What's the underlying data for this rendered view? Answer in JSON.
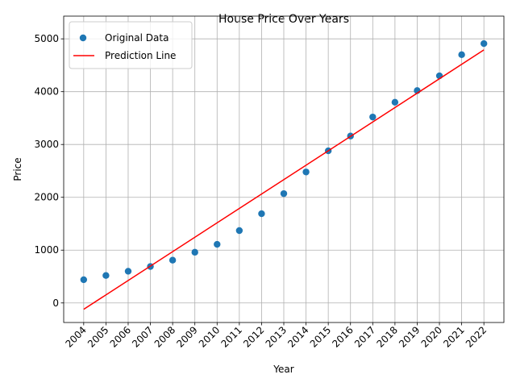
{
  "chart_data": {
    "type": "scatter",
    "title": "House Price Over Years",
    "xlabel": "Year",
    "ylabel": "Price",
    "xlim": [
      2003.1,
      2022.9
    ],
    "ylim": [
      -370,
      5430
    ],
    "xticks": [
      2004,
      2005,
      2006,
      2007,
      2008,
      2009,
      2010,
      2011,
      2012,
      2013,
      2014,
      2015,
      2016,
      2017,
      2018,
      2019,
      2020,
      2021,
      2022
    ],
    "yticks": [
      0,
      1000,
      2000,
      3000,
      4000,
      5000
    ],
    "grid": true,
    "legend": "upper left",
    "series": [
      {
        "name": "Original Data",
        "type": "scatter",
        "color": "#1f77b4",
        "x": [
          2004,
          2005,
          2006,
          2007,
          2008,
          2009,
          2010,
          2011,
          2012,
          2013,
          2014,
          2015,
          2016,
          2017,
          2018,
          2019,
          2020,
          2021,
          2022
        ],
        "values": [
          440,
          520,
          600,
          690,
          810,
          960,
          1110,
          1370,
          1690,
          2070,
          2480,
          2880,
          3160,
          3520,
          3800,
          4020,
          4300,
          4700,
          4910
        ]
      },
      {
        "name": "Prediction Line",
        "type": "line",
        "color": "#ff0000",
        "x": [
          2004,
          2022
        ],
        "values": [
          -120,
          4790
        ]
      }
    ]
  }
}
